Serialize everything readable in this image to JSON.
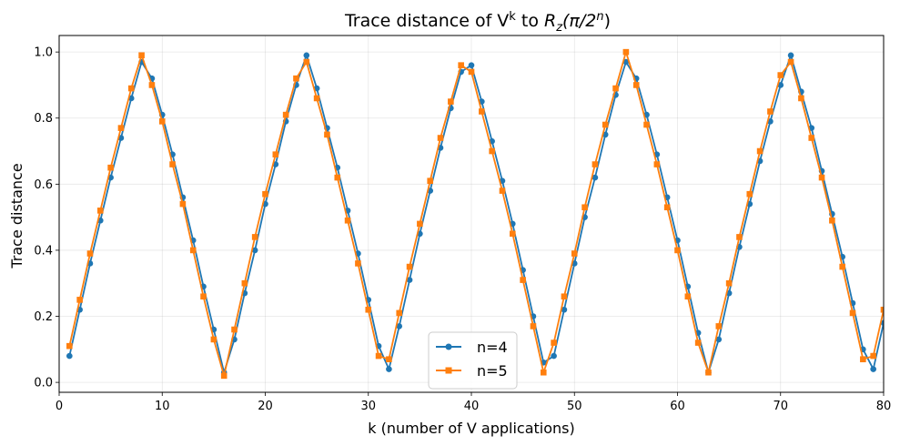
{
  "chart_data": {
    "type": "line",
    "title": "Trace distance of V",
    "title_superscript": "k",
    "title_to": " to ",
    "title_r": "R",
    "title_sub": "z",
    "title_paren_open": "(π/2",
    "title_sup_n": "n",
    "title_paren_close": ")",
    "xlabel": "k (number of V applications)",
    "ylabel": "Trace distance",
    "xlim": [
      0,
      80
    ],
    "ylim": [
      -0.03,
      1.05
    ],
    "xticks": [
      0,
      10,
      20,
      30,
      40,
      50,
      60,
      70,
      80
    ],
    "yticks": [
      0.0,
      0.2,
      0.4,
      0.6,
      0.8,
      1.0
    ],
    "grid": true,
    "legend_position": "bottom-center",
    "series": [
      {
        "name": "n=4",
        "color": "#1f77b4",
        "marker": "circle",
        "x": [
          1,
          2,
          3,
          4,
          5,
          6,
          7,
          8,
          9,
          10,
          11,
          12,
          13,
          14,
          15,
          16,
          17,
          18,
          19,
          20,
          21,
          22,
          23,
          24,
          25,
          26,
          27,
          28,
          29,
          30,
          31,
          32,
          33,
          34,
          35,
          36,
          37,
          38,
          39,
          40,
          41,
          42,
          43,
          44,
          45,
          46,
          47,
          48,
          49,
          50,
          51,
          52,
          53,
          54,
          55,
          56,
          57,
          58,
          59,
          60,
          61,
          62,
          63,
          64,
          65,
          66,
          67,
          68,
          69,
          70,
          71,
          72,
          73,
          74,
          75,
          76,
          77,
          78,
          79,
          80
        ],
        "values": [
          0.08,
          0.22,
          0.36,
          0.49,
          0.62,
          0.74,
          0.86,
          0.97,
          0.92,
          0.81,
          0.69,
          0.56,
          0.43,
          0.29,
          0.16,
          0.03,
          0.13,
          0.27,
          0.4,
          0.54,
          0.66,
          0.79,
          0.9,
          0.99,
          0.89,
          0.77,
          0.65,
          0.52,
          0.39,
          0.25,
          0.11,
          0.04,
          0.17,
          0.31,
          0.45,
          0.58,
          0.71,
          0.83,
          0.94,
          0.96,
          0.85,
          0.73,
          0.61,
          0.48,
          0.34,
          0.2,
          0.06,
          0.08,
          0.22,
          0.36,
          0.5,
          0.62,
          0.75,
          0.87,
          0.97,
          0.92,
          0.81,
          0.69,
          0.56,
          0.43,
          0.29,
          0.15,
          0.03,
          0.13,
          0.27,
          0.41,
          0.54,
          0.67,
          0.79,
          0.9,
          0.99,
          0.88,
          0.77,
          0.64,
          0.51,
          0.38,
          0.24,
          0.1,
          0.04,
          0.18
        ]
      },
      {
        "name": "n=5",
        "color": "#ff7f0e",
        "marker": "square",
        "x": [
          1,
          2,
          3,
          4,
          5,
          6,
          7,
          8,
          9,
          10,
          11,
          12,
          13,
          14,
          15,
          16,
          17,
          18,
          19,
          20,
          21,
          22,
          23,
          24,
          25,
          26,
          27,
          28,
          29,
          30,
          31,
          32,
          33,
          34,
          35,
          36,
          37,
          38,
          39,
          40,
          41,
          42,
          43,
          44,
          45,
          46,
          47,
          48,
          49,
          50,
          51,
          52,
          53,
          54,
          55,
          56,
          57,
          58,
          59,
          60,
          61,
          62,
          63,
          64,
          65,
          66,
          67,
          68,
          69,
          70,
          71,
          72,
          73,
          74,
          75,
          76,
          77,
          78,
          79,
          80
        ],
        "values": [
          0.11,
          0.25,
          0.39,
          0.52,
          0.65,
          0.77,
          0.89,
          0.99,
          0.9,
          0.79,
          0.66,
          0.54,
          0.4,
          0.26,
          0.13,
          0.02,
          0.16,
          0.3,
          0.44,
          0.57,
          0.69,
          0.81,
          0.92,
          0.97,
          0.86,
          0.75,
          0.62,
          0.49,
          0.36,
          0.22,
          0.08,
          0.07,
          0.21,
          0.35,
          0.48,
          0.61,
          0.74,
          0.85,
          0.96,
          0.94,
          0.82,
          0.7,
          0.58,
          0.45,
          0.31,
          0.17,
          0.03,
          0.12,
          0.26,
          0.39,
          0.53,
          0.66,
          0.78,
          0.89,
          1.0,
          0.9,
          0.78,
          0.66,
          0.53,
          0.4,
          0.26,
          0.12,
          0.03,
          0.17,
          0.3,
          0.44,
          0.57,
          0.7,
          0.82,
          0.93,
          0.97,
          0.86,
          0.74,
          0.62,
          0.49,
          0.35,
          0.21,
          0.07,
          0.08,
          0.22
        ]
      }
    ]
  }
}
